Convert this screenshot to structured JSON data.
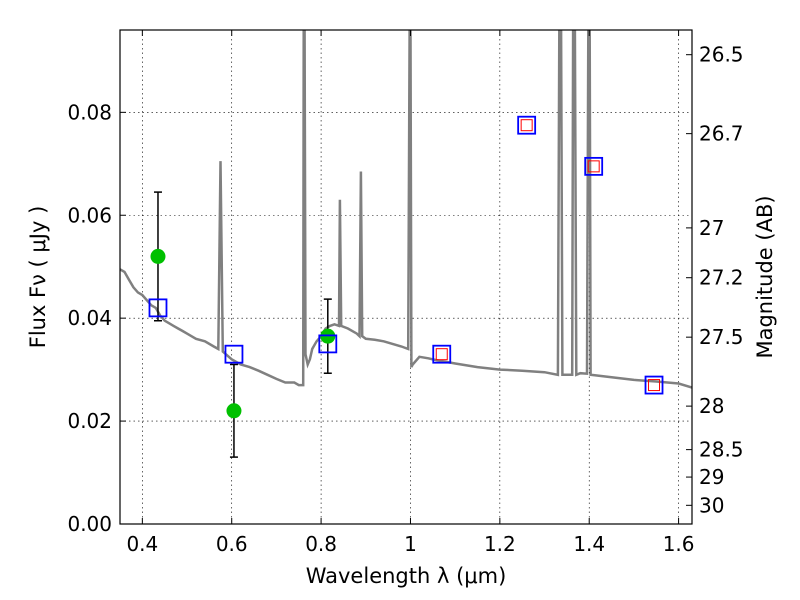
{
  "chart_data": {
    "type": "scatter",
    "xlabel": "Wavelength  λ (μm)",
    "ylabel": "Flux  Fν  ( μJy )",
    "y2label": "Magnitude (AB)",
    "xlim": [
      0.35,
      1.63
    ],
    "ylim": [
      0.0,
      0.096
    ],
    "grid": true,
    "x_ticks": [
      0.4,
      0.6,
      0.8,
      1.0,
      1.2,
      1.4,
      1.6
    ],
    "x_tick_labels": [
      "0.4",
      "0.6",
      "0.8",
      "1",
      "1.2",
      "1.4",
      "1.6"
    ],
    "y_ticks": [
      0.0,
      0.02,
      0.04,
      0.06,
      0.08
    ],
    "y_tick_labels": [
      "0.00",
      "0.02",
      "0.04",
      "0.06",
      "0.08"
    ],
    "y2_ticks": [
      26.5,
      26.7,
      27,
      27.2,
      27.5,
      28,
      28.5,
      29,
      30
    ],
    "y2_tick_labels": [
      "26.5",
      "26.7",
      "27",
      "27.2",
      "27.5",
      "28",
      "28.5",
      "29",
      "30"
    ],
    "sed_model": {
      "color": "#808080",
      "points": [
        [
          0.35,
          0.0495
        ],
        [
          0.36,
          0.049
        ],
        [
          0.37,
          0.0475
        ],
        [
          0.38,
          0.046
        ],
        [
          0.39,
          0.045
        ],
        [
          0.4,
          0.0445
        ],
        [
          0.41,
          0.0435
        ],
        [
          0.42,
          0.0425
        ],
        [
          0.43,
          0.042
        ],
        [
          0.44,
          0.0405
        ],
        [
          0.45,
          0.0395
        ],
        [
          0.46,
          0.039
        ],
        [
          0.47,
          0.0385
        ],
        [
          0.48,
          0.038
        ],
        [
          0.49,
          0.0375
        ],
        [
          0.5,
          0.037
        ],
        [
          0.52,
          0.036
        ],
        [
          0.54,
          0.0355
        ],
        [
          0.56,
          0.0345
        ],
        [
          0.57,
          0.034
        ],
        [
          0.575,
          0.0705
        ],
        [
          0.58,
          0.0335
        ],
        [
          0.6,
          0.032
        ],
        [
          0.62,
          0.031
        ],
        [
          0.64,
          0.0305
        ],
        [
          0.66,
          0.0298
        ],
        [
          0.68,
          0.029
        ],
        [
          0.7,
          0.0282
        ],
        [
          0.72,
          0.0275
        ],
        [
          0.74,
          0.0275
        ],
        [
          0.75,
          0.027
        ],
        [
          0.76,
          0.027
        ],
        [
          0.761,
          0.096
        ],
        [
          0.763,
          0.096
        ],
        [
          0.765,
          0.033
        ],
        [
          0.77,
          0.031
        ],
        [
          0.775,
          0.032
        ],
        [
          0.78,
          0.034
        ],
        [
          0.79,
          0.0355
        ],
        [
          0.8,
          0.0365
        ],
        [
          0.81,
          0.038
        ],
        [
          0.82,
          0.0385
        ],
        [
          0.83,
          0.0388
        ],
        [
          0.84,
          0.0385
        ],
        [
          0.842,
          0.063
        ],
        [
          0.845,
          0.0385
        ],
        [
          0.86,
          0.038
        ],
        [
          0.88,
          0.037
        ],
        [
          0.886,
          0.0365
        ],
        [
          0.889,
          0.0685
        ],
        [
          0.892,
          0.0365
        ],
        [
          0.9,
          0.036
        ],
        [
          0.92,
          0.0358
        ],
        [
          0.94,
          0.0355
        ],
        [
          0.96,
          0.035
        ],
        [
          0.98,
          0.0345
        ],
        [
          0.995,
          0.034
        ],
        [
          0.998,
          0.096
        ],
        [
          1.0,
          0.096
        ],
        [
          1.002,
          0.0305
        ],
        [
          1.005,
          0.031
        ],
        [
          1.02,
          0.0325
        ],
        [
          1.04,
          0.0322
        ],
        [
          1.06,
          0.0318
        ],
        [
          1.08,
          0.0315
        ],
        [
          1.1,
          0.0312
        ],
        [
          1.15,
          0.0305
        ],
        [
          1.2,
          0.03
        ],
        [
          1.25,
          0.0298
        ],
        [
          1.3,
          0.0295
        ],
        [
          1.33,
          0.029
        ],
        [
          1.333,
          0.096
        ],
        [
          1.337,
          0.096
        ],
        [
          1.34,
          0.029
        ],
        [
          1.362,
          0.029
        ],
        [
          1.364,
          0.096
        ],
        [
          1.368,
          0.096
        ],
        [
          1.371,
          0.029
        ],
        [
          1.38,
          0.0293
        ],
        [
          1.395,
          0.0292
        ],
        [
          1.398,
          0.096
        ],
        [
          1.401,
          0.096
        ],
        [
          1.403,
          0.029
        ],
        [
          1.45,
          0.0285
        ],
        [
          1.5,
          0.028
        ],
        [
          1.55,
          0.0277
        ],
        [
          1.6,
          0.0273
        ],
        [
          1.63,
          0.0265
        ]
      ]
    },
    "measurements": {
      "color": "#00c000",
      "points": [
        {
          "x": 0.435,
          "y": 0.052,
          "err_low": 0.0395,
          "err_high": 0.0645
        },
        {
          "x": 0.605,
          "y": 0.022,
          "err_low": 0.013,
          "err_high": 0.031
        },
        {
          "x": 0.815,
          "y": 0.0365,
          "err_low": 0.0293,
          "err_high": 0.0437
        }
      ]
    },
    "model_photometry": {
      "color": "#0000ff",
      "points": [
        [
          0.435,
          0.042
        ],
        [
          0.605,
          0.033
        ],
        [
          0.815,
          0.035
        ],
        [
          1.07,
          0.033
        ],
        [
          1.26,
          0.0775
        ],
        [
          1.41,
          0.0695
        ],
        [
          1.545,
          0.027
        ]
      ]
    },
    "predicted_points": {
      "color": "#ff0000",
      "points": [
        [
          1.07,
          0.033
        ],
        [
          1.26,
          0.0775
        ],
        [
          1.41,
          0.0695
        ],
        [
          1.545,
          0.027
        ]
      ]
    }
  }
}
